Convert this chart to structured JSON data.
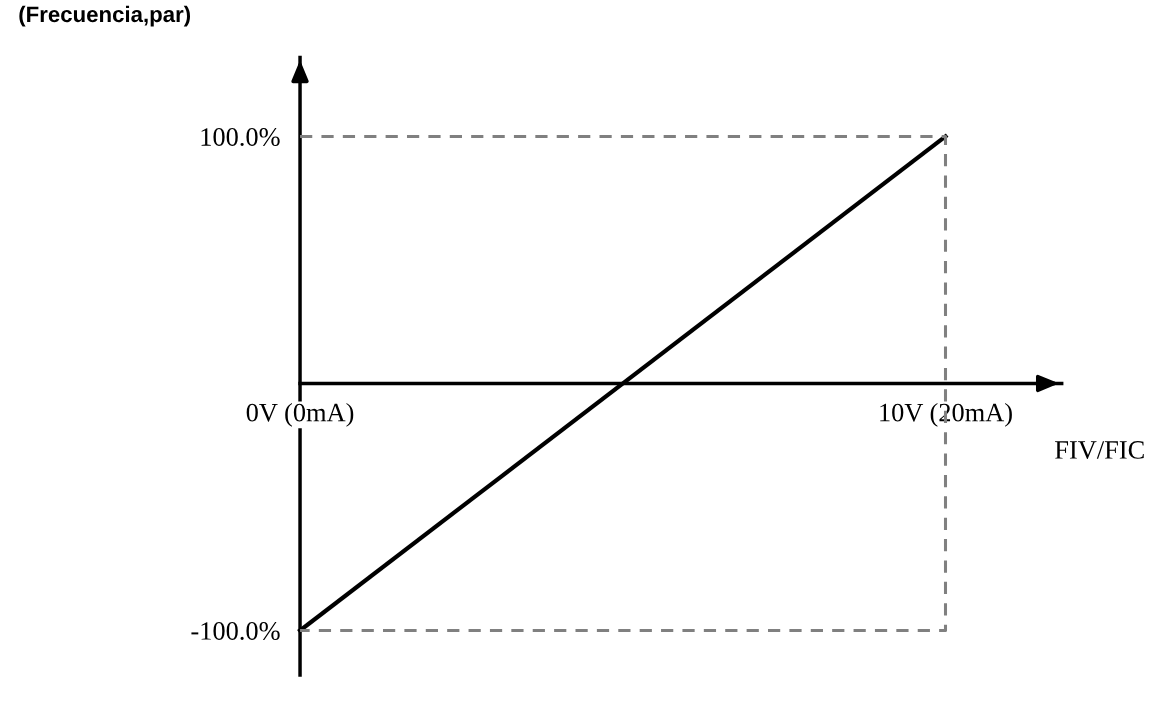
{
  "chart_data": {
    "type": "line",
    "ylabel": "(Frecuencia,par)",
    "xlabel": "FIV/FIC",
    "categories": [
      "0V (0mA)",
      "10V (20mA)"
    ],
    "series": [
      {
        "color": "#000000",
        "values": [
          -100,
          100
        ],
        "line_style": "solid"
      },
      {
        "color": "#808080",
        "x": [
          "0V (0mA)",
          "10V (20mA)",
          "10V (20mA)",
          "0V (0mA)"
        ],
        "values": [
          100,
          100,
          -100,
          -100
        ],
        "line_style": "dashed"
      }
    ],
    "ylim": [
      -118,
      132
    ],
    "yticks": [
      {
        "value": -100,
        "label": "-100.0%"
      },
      {
        "value": 100,
        "label": "100.0%"
      }
    ],
    "grid": false,
    "legend": false,
    "marker": "none"
  }
}
